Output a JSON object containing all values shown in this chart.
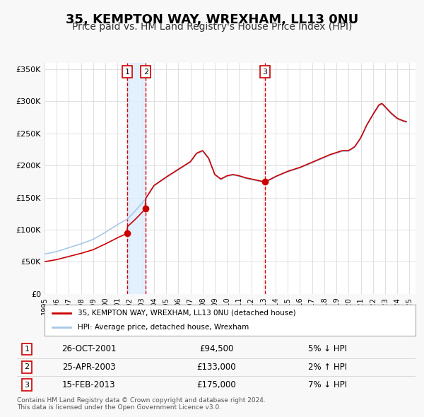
{
  "title": "35, KEMPTON WAY, WREXHAM, LL13 0NU",
  "subtitle": "Price paid vs. HM Land Registry's House Price Index (HPI)",
  "title_fontsize": 13,
  "subtitle_fontsize": 10,
  "ylim": [
    0,
    360000
  ],
  "yticks": [
    0,
    50000,
    100000,
    150000,
    200000,
    250000,
    300000,
    350000
  ],
  "ytick_labels": [
    "£0",
    "£50K",
    "£100K",
    "£150K",
    "£200K",
    "£250K",
    "£300K",
    "£350K"
  ],
  "xlim_start": 1995.0,
  "xlim_end": 2025.5,
  "xticks": [
    1995,
    1996,
    1997,
    1998,
    1999,
    2000,
    2001,
    2002,
    2003,
    2004,
    2005,
    2006,
    2007,
    2008,
    2009,
    2010,
    2011,
    2012,
    2013,
    2014,
    2015,
    2016,
    2017,
    2018,
    2019,
    2020,
    2021,
    2022,
    2023,
    2024,
    2025
  ],
  "background_color": "#f8f8f8",
  "plot_bg_color": "#ffffff",
  "grid_color": "#e0e0e0",
  "hpi_color": "#a8c8e8",
  "price_color": "#cc0000",
  "sale_marker_color": "#cc0000",
  "vline_color": "#dd0000",
  "shade_color": "#ddeeff",
  "legend_label_price": "35, KEMPTON WAY, WREXHAM, LL13 0NU (detached house)",
  "legend_label_hpi": "HPI: Average price, detached house, Wrexham",
  "transactions": [
    {
      "num": 1,
      "date_str": "26-OCT-2001",
      "date_x": 2001.81,
      "price": 94500,
      "pct": "5%",
      "dir": "↓"
    },
    {
      "num": 2,
      "date_str": "25-APR-2003",
      "date_x": 2003.32,
      "price": 133000,
      "pct": "2%",
      "dir": "↑"
    },
    {
      "num": 3,
      "date_str": "15-FEB-2013",
      "date_x": 2013.12,
      "price": 175000,
      "pct": "7%",
      "dir": "↓"
    }
  ],
  "footer_line1": "Contains HM Land Registry data © Crown copyright and database right 2024.",
  "footer_line2": "This data is licensed under the Open Government Licence v3.0."
}
